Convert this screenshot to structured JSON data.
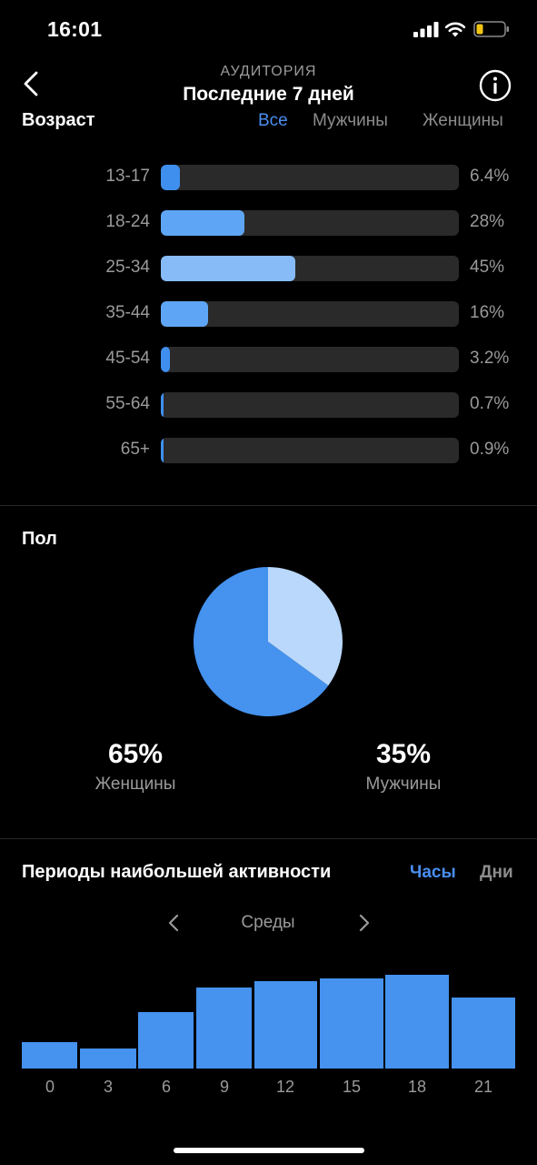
{
  "status": {
    "time": "16:01"
  },
  "header": {
    "subtitle": "АУДИТОРИЯ",
    "title": "Последние 7 дней"
  },
  "age": {
    "title": "Возраст",
    "tabs": [
      {
        "label": "Все",
        "active": true
      },
      {
        "label": "Мужчины",
        "active": false
      },
      {
        "label": "Женщины",
        "active": false
      }
    ],
    "rows": [
      {
        "label": "13-17",
        "pct_text": "6.4%",
        "value": 6.4
      },
      {
        "label": "18-24",
        "pct_text": "28%",
        "value": 28
      },
      {
        "label": "25-34",
        "pct_text": "45%",
        "value": 45
      },
      {
        "label": "35-44",
        "pct_text": "16%",
        "value": 16
      },
      {
        "label": "45-54",
        "pct_text": "3.2%",
        "value": 3.2
      },
      {
        "label": "55-64",
        "pct_text": "0.7%",
        "value": 0.7
      },
      {
        "label": "65+",
        "pct_text": "0.9%",
        "value": 0.9
      }
    ]
  },
  "gender": {
    "title": "Пол",
    "women": {
      "value_text": "65%",
      "label": "Женщины",
      "value": 65
    },
    "men": {
      "value_text": "35%",
      "label": "Мужчины",
      "value": 35
    }
  },
  "activity": {
    "title": "Периоды наибольшей активности",
    "tabs": [
      {
        "label": "Часы",
        "active": true
      },
      {
        "label": "Дни",
        "active": false
      }
    ],
    "day": "Среды",
    "ticks": [
      "0",
      "3",
      "6",
      "9",
      "12",
      "15",
      "18",
      "21"
    ],
    "bars": [
      29,
      22,
      62,
      89,
      96,
      99,
      103,
      78
    ]
  },
  "colors": {
    "accent": "#4a8ef0",
    "bar_dark": "#3f8fef",
    "bar_mid": "#5ea6f5",
    "bar_light": "#86bbf8",
    "pie_women": "#4592ef",
    "pie_men": "#b9d8fb",
    "activity_bar": "#4592ef"
  }
}
